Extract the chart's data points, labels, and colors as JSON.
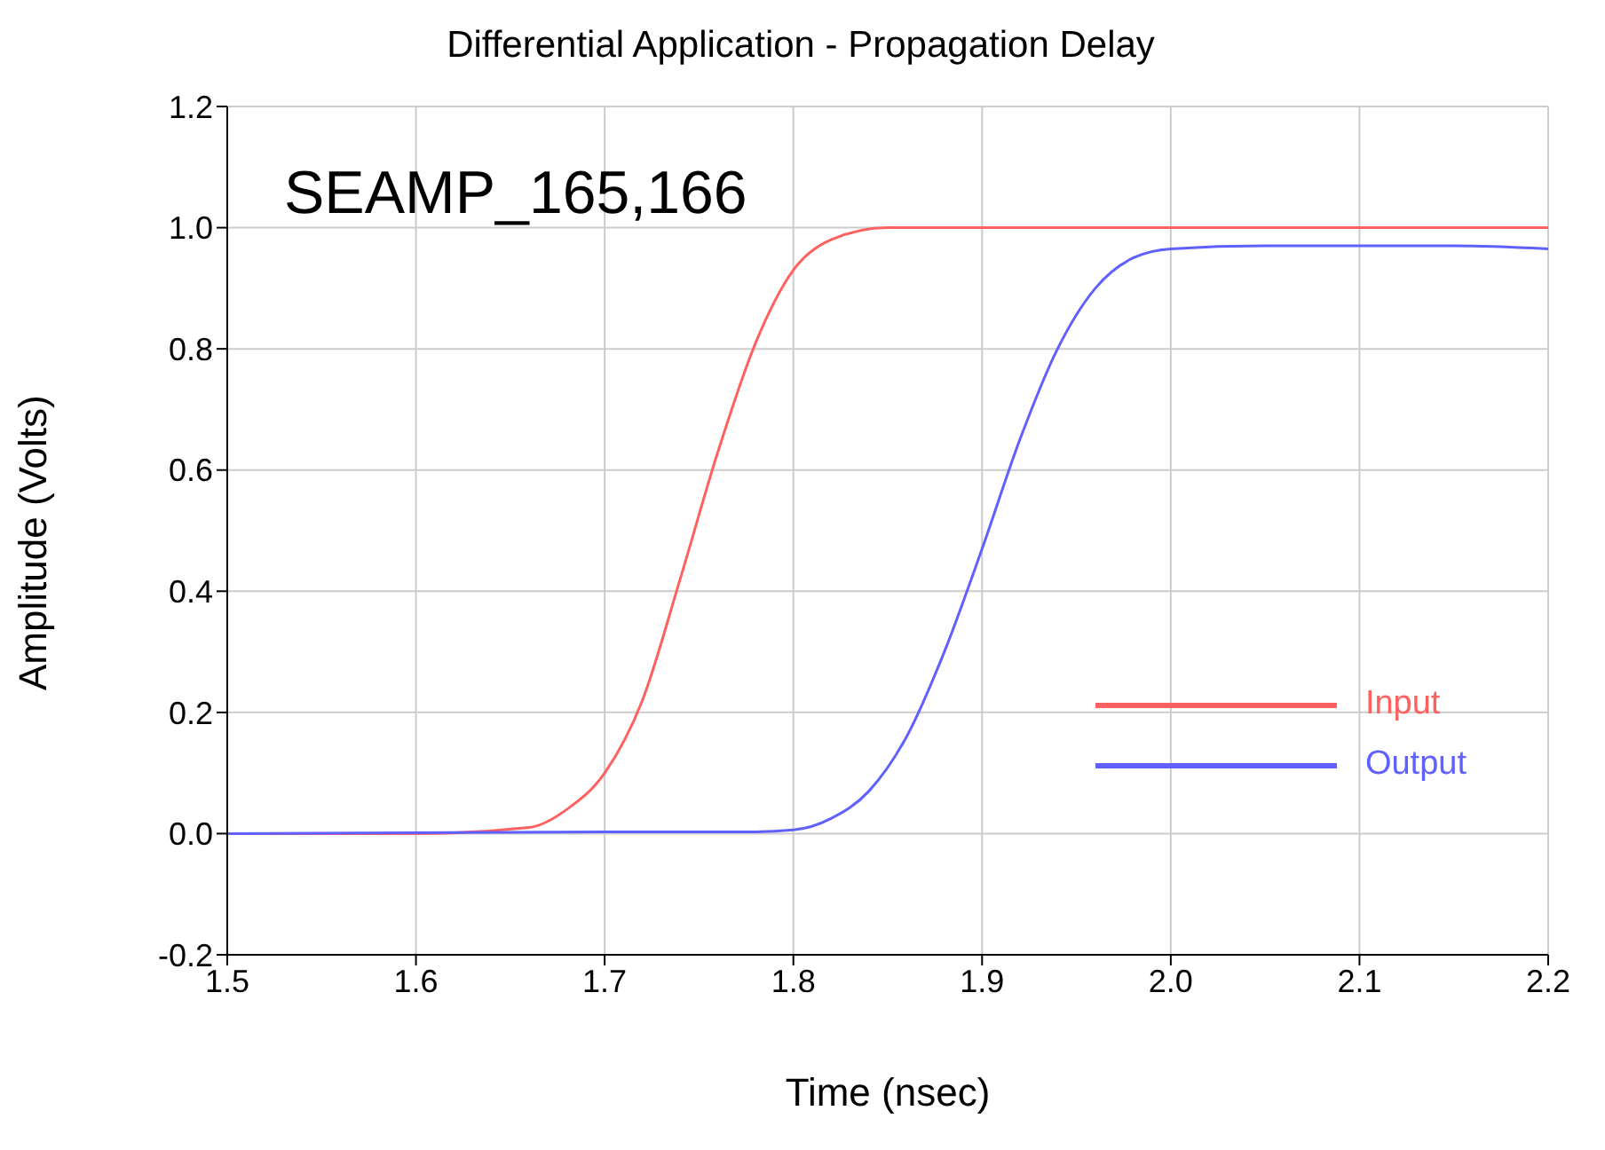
{
  "chart_data": {
    "type": "line",
    "title": "Differential Application - Propagation Delay",
    "xlabel": "Time (nsec)",
    "ylabel": "Amplitude (Volts)",
    "annotations": [
      "SEAMP_165,166"
    ],
    "series": [
      {
        "name": "Input",
        "color": "#ff6060",
        "x": [
          1.5,
          1.6,
          1.66,
          1.68,
          1.7,
          1.72,
          1.74,
          1.76,
          1.78,
          1.8,
          1.82,
          1.85,
          2.2
        ],
        "values": [
          0,
          0,
          0.01,
          0.04,
          0.1,
          0.22,
          0.42,
          0.63,
          0.81,
          0.93,
          0.98,
          1.0,
          1.0
        ]
      },
      {
        "name": "Output",
        "color": "#6060ff",
        "x": [
          1.5,
          1.7,
          1.78,
          1.8,
          1.82,
          1.84,
          1.86,
          1.88,
          1.9,
          1.92,
          1.94,
          1.96,
          1.98,
          2.0,
          2.05,
          2.15,
          2.2
        ],
        "values": [
          0,
          0.003,
          0.003,
          0.006,
          0.025,
          0.07,
          0.16,
          0.3,
          0.47,
          0.65,
          0.8,
          0.9,
          0.95,
          0.965,
          0.97,
          0.97,
          0.965
        ]
      }
    ],
    "xlim": [
      1.5,
      2.2
    ],
    "xticks": [
      1.5,
      1.6,
      1.7,
      1.8,
      1.9,
      {
        "value": 2,
        "label": "2.0"
      },
      2.1,
      2.2
    ],
    "ylim": [
      -0.2,
      1.2
    ],
    "yticks": [
      -0.2,
      {
        "value": 0,
        "label": "0.0"
      },
      0.2,
      0.4,
      0.6,
      0.8,
      {
        "value": 1,
        "label": "1.0"
      },
      1.2
    ],
    "grid": true,
    "legend": "bottom right",
    "marker": "none",
    "line_style": "solid"
  }
}
